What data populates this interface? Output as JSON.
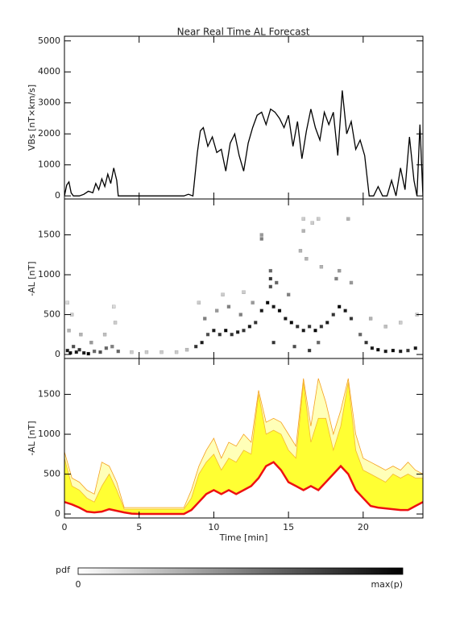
{
  "chart_data": [
    {
      "type": "line",
      "title": "Near Real Time AL Forecast",
      "ylabel": "VBs [nT×km/s]",
      "x": [
        0,
        0.15,
        0.3,
        0.45,
        0.6,
        1,
        1.3,
        1.6,
        1.9,
        2.1,
        2.3,
        2.5,
        2.7,
        2.9,
        3.1,
        3.3,
        3.5,
        3.6,
        3.7,
        4,
        5,
        6,
        7,
        8,
        8.3,
        8.6,
        8.9,
        9.1,
        9.3,
        9.6,
        9.9,
        10.2,
        10.5,
        10.8,
        11.1,
        11.4,
        11.7,
        12,
        12.3,
        12.6,
        12.9,
        13.2,
        13.5,
        13.8,
        14.1,
        14.4,
        14.7,
        15,
        15.3,
        15.6,
        15.9,
        16.2,
        16.5,
        16.8,
        17.1,
        17.4,
        17.7,
        18,
        18.3,
        18.6,
        18.9,
        19.2,
        19.5,
        19.8,
        20.1,
        20.4,
        20.7,
        21,
        21.3,
        21.6,
        21.9,
        22.2,
        22.5,
        22.8,
        23.1,
        23.4,
        23.6,
        23.8,
        24
      ],
      "series": [
        {
          "color": "#000000",
          "values": [
            0,
            350,
            450,
            100,
            0,
            0,
            50,
            150,
            100,
            400,
            200,
            550,
            300,
            700,
            400,
            900,
            500,
            0,
            0,
            0,
            0,
            0,
            0,
            0,
            50,
            0,
            1400,
            2100,
            2200,
            1600,
            1900,
            1400,
            1500,
            800,
            1700,
            2000,
            1300,
            800,
            1700,
            2200,
            2600,
            2700,
            2300,
            2800,
            2700,
            2500,
            2200,
            2600,
            1600,
            2400,
            1200,
            2100,
            2800,
            2200,
            1800,
            2700,
            2300,
            2700,
            1300,
            3400,
            2000,
            2400,
            1500,
            1800,
            1300,
            0,
            0,
            300,
            0,
            0,
            500,
            0,
            900,
            200,
            1900,
            500,
            0,
            2300,
            0
          ]
        }
      ],
      "xlim": [
        0,
        24
      ],
      "xticks": [
        0,
        5,
        10,
        15,
        20
      ],
      "show_xtick_labels": false,
      "ylim": [
        -100,
        5150
      ],
      "yticks": [
        0,
        1000,
        2000,
        3000,
        4000,
        5000
      ]
    },
    {
      "type": "density",
      "ylabel": "-AL [nT]",
      "cells": [
        [
          0.2,
          50,
          0.9
        ],
        [
          0.4,
          20,
          1
        ],
        [
          0.6,
          100,
          0.7
        ],
        [
          0.8,
          30,
          0.9
        ],
        [
          1.0,
          60,
          0.8
        ],
        [
          1.3,
          20,
          0.9
        ],
        [
          1.6,
          10,
          1
        ],
        [
          2.0,
          40,
          0.6
        ],
        [
          2.4,
          30,
          0.7
        ],
        [
          2.8,
          80,
          0.6
        ],
        [
          3.2,
          100,
          0.5
        ],
        [
          3.6,
          40,
          0.6
        ],
        [
          0.3,
          300,
          0.3
        ],
        [
          0.5,
          500,
          0.2
        ],
        [
          0.2,
          650,
          0.15
        ],
        [
          1.1,
          250,
          0.3
        ],
        [
          2.7,
          250,
          0.25
        ],
        [
          3.4,
          400,
          0.2
        ],
        [
          3.3,
          600,
          0.15
        ],
        [
          1.8,
          150,
          0.4
        ],
        [
          4.5,
          30,
          0.2
        ],
        [
          5.5,
          30,
          0.2
        ],
        [
          6.5,
          30,
          0.2
        ],
        [
          7.5,
          30,
          0.2
        ],
        [
          8.2,
          60,
          0.25
        ],
        [
          8.8,
          100,
          0.8
        ],
        [
          9.2,
          150,
          0.9
        ],
        [
          9.6,
          250,
          0.7
        ],
        [
          10,
          300,
          0.9
        ],
        [
          10.4,
          250,
          0.8
        ],
        [
          10.8,
          300,
          1
        ],
        [
          11.2,
          250,
          0.8
        ],
        [
          11.6,
          280,
          0.9
        ],
        [
          12,
          300,
          0.8
        ],
        [
          12.4,
          350,
          0.9
        ],
        [
          12.8,
          400,
          0.8
        ],
        [
          9.4,
          450,
          0.5
        ],
        [
          10.2,
          550,
          0.4
        ],
        [
          11,
          600,
          0.5
        ],
        [
          11.8,
          500,
          0.5
        ],
        [
          12.6,
          650,
          0.4
        ],
        [
          9,
          650,
          0.2
        ],
        [
          10.6,
          750,
          0.2
        ],
        [
          12,
          780,
          0.2
        ],
        [
          13.2,
          550,
          0.9
        ],
        [
          13.6,
          650,
          1
        ],
        [
          14,
          600,
          0.9
        ],
        [
          14.4,
          550,
          1
        ],
        [
          14.8,
          450,
          0.9
        ],
        [
          15.2,
          400,
          1
        ],
        [
          15.6,
          350,
          0.8
        ],
        [
          16,
          300,
          0.9
        ],
        [
          16.4,
          350,
          0.8
        ],
        [
          16.8,
          300,
          1
        ],
        [
          17.2,
          350,
          0.8
        ],
        [
          17.6,
          400,
          0.9
        ],
        [
          18,
          500,
          0.8
        ],
        [
          18.4,
          600,
          1
        ],
        [
          18.8,
          550,
          0.9
        ],
        [
          19.2,
          450,
          0.8
        ],
        [
          13.8,
          850,
          0.7
        ],
        [
          13.8,
          950,
          0.8
        ],
        [
          13.8,
          1050,
          0.6
        ],
        [
          14.2,
          900,
          0.6
        ],
        [
          13.2,
          1450,
          0.5
        ],
        [
          13.2,
          1500,
          0.4
        ],
        [
          15,
          750,
          0.5
        ],
        [
          15.8,
          1300,
          0.3
        ],
        [
          16,
          1550,
          0.3
        ],
        [
          16,
          1700,
          0.2
        ],
        [
          16.6,
          1650,
          0.2
        ],
        [
          17,
          1700,
          0.2
        ],
        [
          16.2,
          1200,
          0.3
        ],
        [
          17.2,
          1100,
          0.3
        ],
        [
          18.2,
          950,
          0.5
        ],
        [
          18.4,
          1050,
          0.4
        ],
        [
          19,
          1700,
          0.3
        ],
        [
          19.2,
          900,
          0.4
        ],
        [
          14,
          150,
          0.8
        ],
        [
          15.4,
          100,
          0.7
        ],
        [
          16.4,
          50,
          0.8
        ],
        [
          17,
          150,
          0.6
        ],
        [
          19.8,
          250,
          0.6
        ],
        [
          20.2,
          150,
          0.8
        ],
        [
          20.6,
          80,
          0.9
        ],
        [
          21,
          60,
          1
        ],
        [
          21.5,
          40,
          0.9
        ],
        [
          22,
          50,
          1
        ],
        [
          22.5,
          40,
          0.9
        ],
        [
          23,
          50,
          0.8
        ],
        [
          23.5,
          80,
          0.9
        ],
        [
          20.5,
          450,
          0.3
        ],
        [
          21.5,
          350,
          0.25
        ],
        [
          22.5,
          400,
          0.2
        ],
        [
          23.6,
          500,
          0.2
        ]
      ],
      "xlim": [
        0,
        24
      ],
      "xticks": [
        0,
        5,
        10,
        15,
        20
      ],
      "show_xtick_labels": false,
      "ylim": [
        -50,
        1950
      ],
      "yticks": [
        0,
        500,
        1000,
        1500
      ]
    },
    {
      "type": "band",
      "ylabel": "-AL [nT]",
      "xlabel": "Time [min]",
      "x": [
        0,
        0.5,
        1,
        1.5,
        2,
        2.5,
        3,
        3.5,
        4,
        4.5,
        5,
        5.5,
        6,
        6.5,
        7,
        7.5,
        8,
        8.5,
        9,
        9.5,
        10,
        10.5,
        11,
        11.5,
        12,
        12.5,
        13,
        13.5,
        14,
        14.5,
        15,
        15.5,
        16,
        16.5,
        17,
        17.5,
        18,
        18.5,
        19,
        19.5,
        20,
        20.5,
        21,
        21.5,
        22,
        22.5,
        23,
        23.5,
        24
      ],
      "median": {
        "color": "#ee1111",
        "values": [
          150,
          120,
          80,
          30,
          20,
          30,
          60,
          40,
          20,
          5,
          0,
          0,
          0,
          0,
          0,
          0,
          0,
          50,
          150,
          250,
          300,
          250,
          300,
          250,
          300,
          350,
          450,
          600,
          650,
          550,
          400,
          350,
          300,
          350,
          300,
          400,
          500,
          600,
          500,
          300,
          200,
          100,
          80,
          70,
          60,
          50,
          50,
          100,
          150
        ]
      },
      "series": [
        {
          "color": "#f5a020",
          "fill": "#ffffb8",
          "values": [
            780,
            450,
            400,
            300,
            250,
            650,
            600,
            400,
            80,
            80,
            80,
            80,
            80,
            80,
            80,
            80,
            80,
            300,
            600,
            800,
            950,
            700,
            900,
            850,
            1000,
            900,
            1550,
            1150,
            1200,
            1150,
            1000,
            850,
            1700,
            1100,
            1700,
            1400,
            1000,
            1300,
            1700,
            1000,
            700,
            650,
            600,
            550,
            600,
            550,
            650,
            550,
            500
          ]
        },
        {
          "color": "#f5b830",
          "fill": "#ffff33",
          "values": [
            700,
            350,
            300,
            200,
            150,
            350,
            500,
            300,
            60,
            60,
            60,
            60,
            60,
            60,
            60,
            60,
            60,
            200,
            500,
            650,
            750,
            550,
            700,
            650,
            800,
            750,
            1500,
            1000,
            1050,
            1000,
            800,
            700,
            1650,
            900,
            1200,
            1200,
            800,
            1100,
            1650,
            800,
            550,
            500,
            450,
            400,
            500,
            450,
            500,
            450,
            450
          ]
        }
      ],
      "xlim": [
        0,
        24
      ],
      "xticks": [
        0,
        5,
        10,
        15,
        20
      ],
      "show_xtick_labels": true,
      "ylim": [
        -50,
        1950
      ],
      "yticks": [
        0,
        500,
        1000,
        1500
      ]
    }
  ],
  "colorbar": {
    "label": "pdf",
    "min": 0,
    "max_label": "max(p)"
  }
}
